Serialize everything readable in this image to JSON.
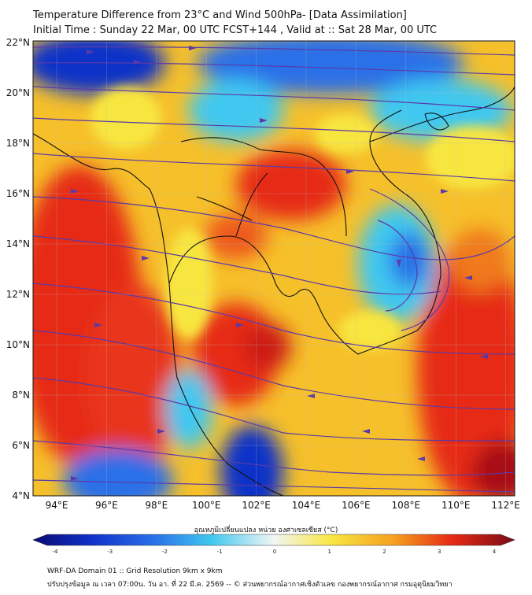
{
  "title_line1": "Temperature Difference from 23°C and Wind 500hPa- [Data Assimilation]",
  "title_line2": "Initial Time : Sunday 22 Mar, 00 UTC FCST+144 , Valid at ::  Sat 28 Mar, 00 UTC",
  "y_ticks": [
    "22°N",
    "20°N",
    "18°N",
    "16°N",
    "14°N",
    "12°N",
    "10°N",
    "8°N",
    "6°N",
    "4°N"
  ],
  "x_ticks": [
    "94°E",
    "96°E",
    "98°E",
    "100°E",
    "102°E",
    "104°E",
    "106°E",
    "108°E",
    "110°E",
    "112°E"
  ],
  "colorbar": {
    "title": "อุณหภูมิเปลี่ยนแปลง หน่วย องศาเซลเซียส (°C)",
    "ticks": [
      "-4",
      "-3",
      "-2",
      "-1",
      "0",
      "1",
      "2",
      "3",
      "4"
    ],
    "min": -4,
    "max": 4
  },
  "colors": {
    "deep_blue": "#1030c8",
    "blue": "#2a6fe8",
    "cyan": "#3fc8f0",
    "light": "#e6f4f6",
    "yellow": "#f8e640",
    "orange": "#f6a020",
    "red": "#e62a14",
    "dark_red": "#b0101a",
    "streamline": "#5a3aa8",
    "border": "#111111"
  },
  "footer_line1": "WRF-DA Domain 01 :: Grid Resolution 9km x 9km",
  "footer_line2": "ปรับปรุงข้อมูล ณ เวลา 07:00น. วัน อา. ที่ 22 มี.ค. 2569 -- © ส่วนพยากรณ์อากาศเชิงตัวเลข กองพยากรณ์อากาศ กรมอุตุนิยมวิทยา"
}
